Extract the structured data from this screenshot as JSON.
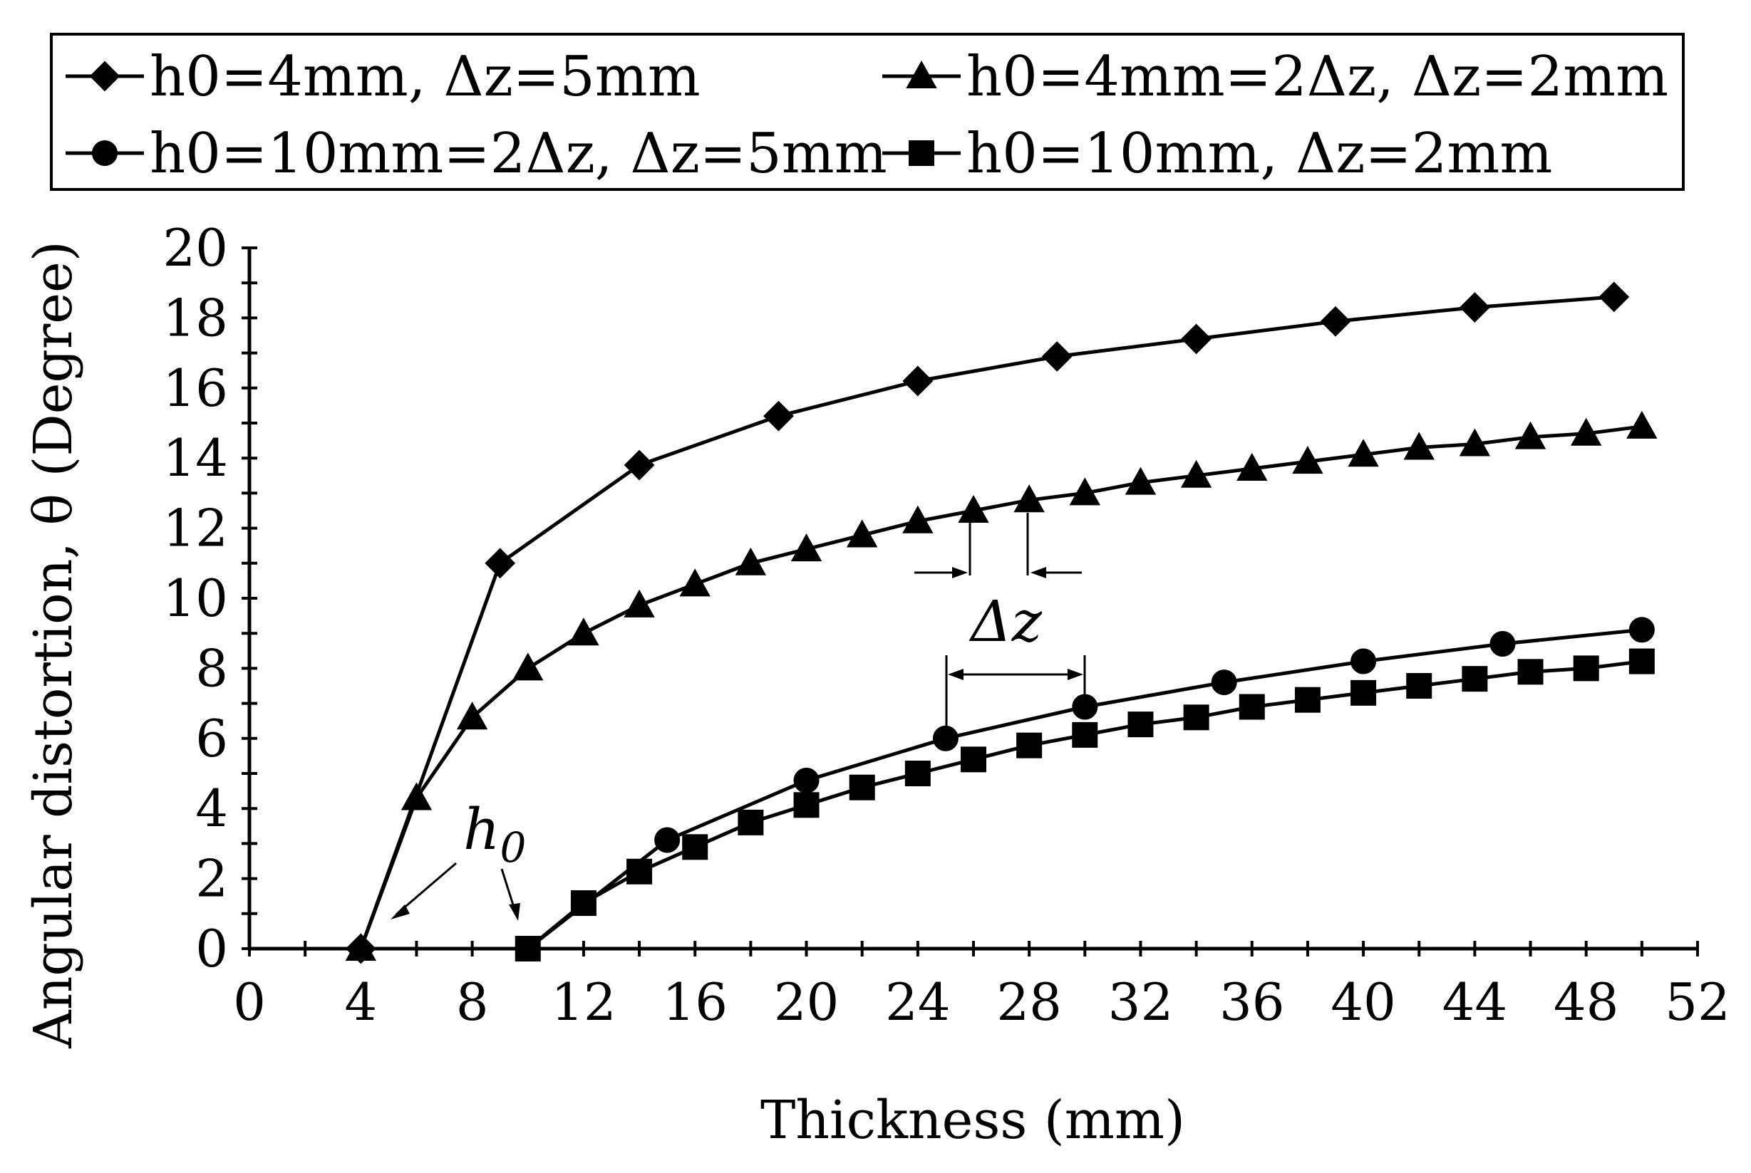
{
  "chart_data": {
    "type": "line",
    "xlabel": "Thickness (mm)",
    "ylabel": "Angular distortion, θ (Degree)",
    "xlim": [
      0,
      52
    ],
    "ylim": [
      0,
      20
    ],
    "xticks": [
      0,
      4,
      8,
      12,
      16,
      20,
      24,
      28,
      32,
      36,
      40,
      44,
      48,
      52
    ],
    "yticks": [
      0,
      2,
      4,
      6,
      8,
      10,
      12,
      14,
      16,
      18,
      20
    ],
    "grid": false,
    "legend_position": "top",
    "series": [
      {
        "name": "h0=4mm, Δz=5mm",
        "marker": "diamond",
        "x": [
          4,
          9,
          14,
          19,
          24,
          29,
          34,
          39,
          44,
          49
        ],
        "y": [
          0.0,
          11.0,
          13.8,
          15.2,
          16.2,
          16.9,
          17.4,
          17.9,
          18.3,
          18.6
        ]
      },
      {
        "name": "h0=4mm=2Δz, Δz=2mm",
        "marker": "triangle",
        "x": [
          4,
          6,
          8,
          10,
          12,
          14,
          16,
          18,
          20,
          22,
          24,
          26,
          28,
          30,
          32,
          34,
          36,
          38,
          40,
          42,
          44,
          46,
          48,
          50
        ],
        "y": [
          0.0,
          4.3,
          6.6,
          8.0,
          9.0,
          9.8,
          10.4,
          11.0,
          11.4,
          11.8,
          12.2,
          12.5,
          12.8,
          13.0,
          13.3,
          13.5,
          13.7,
          13.9,
          14.1,
          14.3,
          14.4,
          14.6,
          14.7,
          14.9
        ]
      },
      {
        "name": "h0=10mm=2Δz, Δz=5mm",
        "marker": "circle",
        "x": [
          10,
          15,
          20,
          25,
          30,
          35,
          40,
          45,
          50
        ],
        "y": [
          0.0,
          3.1,
          4.8,
          6.0,
          6.9,
          7.6,
          8.2,
          8.7,
          9.1
        ]
      },
      {
        "name": "h0=10mm, Δz=2mm",
        "marker": "square",
        "x": [
          10,
          12,
          14,
          16,
          18,
          20,
          22,
          24,
          26,
          28,
          30,
          32,
          34,
          36,
          38,
          40,
          42,
          44,
          46,
          48,
          50
        ],
        "y": [
          0.0,
          1.3,
          2.2,
          2.9,
          3.6,
          4.1,
          4.6,
          5.0,
          5.4,
          5.8,
          6.1,
          6.4,
          6.6,
          6.9,
          7.1,
          7.3,
          7.5,
          7.7,
          7.9,
          8.0,
          8.2
        ]
      }
    ],
    "annotations": {
      "h0_label": "h",
      "h0_subscript": "0",
      "dz_label": "Δz"
    }
  }
}
